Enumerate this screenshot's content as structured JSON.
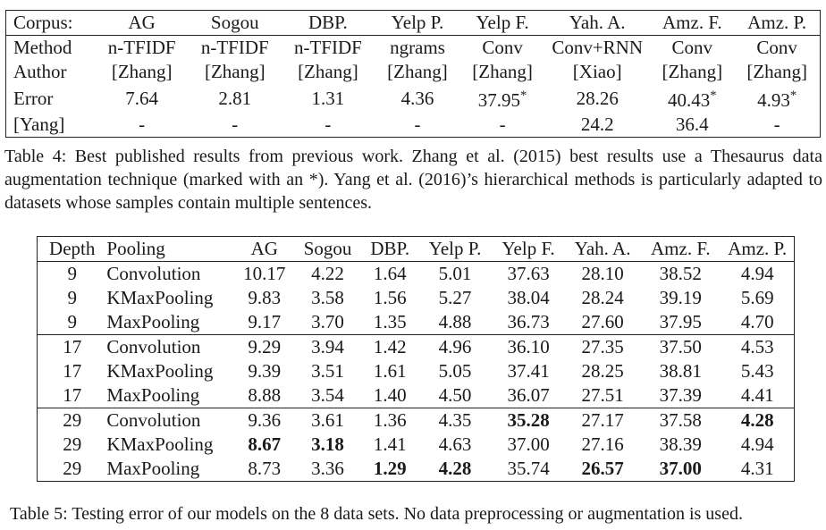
{
  "table4": {
    "header": [
      "Corpus:",
      "AG",
      "Sogou",
      "DBP.",
      "Yelp P.",
      "Yelp F.",
      "Yah. A.",
      "Amz. F.",
      "Amz. P."
    ],
    "rows": [
      [
        "Method",
        "n-TFIDF",
        "n-TFIDF",
        "n-TFIDF",
        "ngrams",
        "Conv",
        "Conv+RNN",
        "Conv",
        "Conv"
      ],
      [
        "Author",
        "[Zhang]",
        "[Zhang]",
        "[Zhang]",
        "[Zhang]",
        "[Zhang]",
        "[Xiao]",
        "[Zhang]",
        "[Zhang]"
      ],
      [
        "Error",
        "7.64",
        "2.81",
        "1.31",
        "4.36",
        "37.95*",
        "28.26",
        "40.43*",
        "4.93*"
      ],
      [
        "[Yang]",
        "-",
        "-",
        "-",
        "-",
        "-",
        "24.2",
        "36.4",
        "-"
      ]
    ],
    "caption": "Table 4: Best published results from previous work. Zhang et al. (2015) best results use a Thesaurus data augmentation technique (marked with an *). Yang et al. (2016)’s hierarchical methods is particularly adapted to datasets whose samples contain multiple sentences."
  },
  "table5": {
    "header": [
      "Depth",
      "Pooling",
      "AG",
      "Sogou",
      "DBP.",
      "Yelp P.",
      "Yelp F.",
      "Yah. A.",
      "Amz. F.",
      "Amz. P."
    ],
    "rows": [
      [
        "9",
        "Convolution",
        "10.17",
        "4.22",
        "1.64",
        "5.01",
        "37.63",
        "28.10",
        "38.52",
        "4.94"
      ],
      [
        "9",
        "KMaxPooling",
        "9.83",
        "3.58",
        "1.56",
        "5.27",
        "38.04",
        "28.24",
        "39.19",
        "5.69"
      ],
      [
        "9",
        "MaxPooling",
        "9.17",
        "3.70",
        "1.35",
        "4.88",
        "36.73",
        "27.60",
        "37.95",
        "4.70"
      ],
      [
        "17",
        "Convolution",
        "9.29",
        "3.94",
        "1.42",
        "4.96",
        "36.10",
        "27.35",
        "37.50",
        "4.53"
      ],
      [
        "17",
        "KMaxPooling",
        "9.39",
        "3.51",
        "1.61",
        "5.05",
        "37.41",
        "28.25",
        "38.81",
        "5.43"
      ],
      [
        "17",
        "MaxPooling",
        "8.88",
        "3.54",
        "1.40",
        "4.50",
        "36.07",
        "27.51",
        "37.39",
        "4.41"
      ],
      [
        "29",
        "Convolution",
        "9.36",
        "3.61",
        "1.36",
        "4.35",
        "35.28",
        "27.17",
        "37.58",
        "4.28"
      ],
      [
        "29",
        "KMaxPooling",
        "8.67",
        "3.18",
        "1.41",
        "4.63",
        "37.00",
        "27.16",
        "38.39",
        "4.94"
      ],
      [
        "29",
        "MaxPooling",
        "8.73",
        "3.36",
        "1.29",
        "4.28",
        "35.74",
        "26.57",
        "37.00",
        "4.31"
      ]
    ],
    "bold_cells": [
      [
        6,
        6
      ],
      [
        6,
        9
      ],
      [
        7,
        2
      ],
      [
        7,
        3
      ],
      [
        8,
        4
      ],
      [
        8,
        5
      ],
      [
        8,
        7
      ],
      [
        8,
        8
      ]
    ],
    "group_separators_before_rows": [
      3,
      6
    ],
    "caption": "Table 5: Testing error of our models on the 8 data sets. No data preprocessing or augmentation is used."
  }
}
